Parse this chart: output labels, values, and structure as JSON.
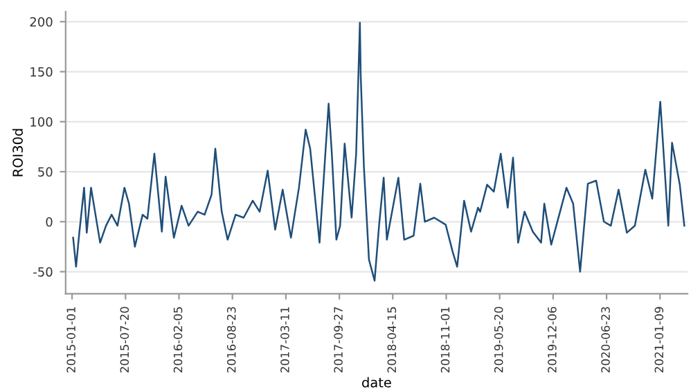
{
  "chart_data": {
    "type": "line",
    "xlabel": "date",
    "ylabel": "ROI30d",
    "x": [
      "2015-01-05",
      "2015-01-16",
      "2015-01-27",
      "2015-02-15",
      "2015-02-25",
      "2015-03-13",
      "2015-04-16",
      "2015-05-08",
      "2015-05-29",
      "2015-06-20",
      "2015-07-16",
      "2015-08-02",
      "2015-08-24",
      "2015-09-22",
      "2015-10-10",
      "2015-11-05",
      "2015-12-03",
      "2015-12-17",
      "2016-01-17",
      "2016-02-15",
      "2016-03-12",
      "2016-04-15",
      "2016-05-11",
      "2016-06-06",
      "2016-06-20",
      "2016-07-14",
      "2016-08-05",
      "2016-09-04",
      "2016-10-04",
      "2016-11-07",
      "2016-12-03",
      "2017-01-02",
      "2017-01-30",
      "2017-02-27",
      "2017-03-30",
      "2017-04-29",
      "2017-05-24",
      "2017-06-10",
      "2017-07-15",
      "2017-08-18",
      "2017-08-30",
      "2017-09-16",
      "2017-09-30",
      "2017-10-17",
      "2017-11-12",
      "2017-11-29",
      "2017-12-13",
      "2017-12-16",
      "2017-12-28",
      "2018-01-16",
      "2018-02-06",
      "2018-02-23",
      "2018-03-12",
      "2018-03-24",
      "2018-05-06",
      "2018-05-28",
      "2018-07-02",
      "2018-07-27",
      "2018-08-13",
      "2018-09-17",
      "2018-10-30",
      "2018-11-25",
      "2018-12-12",
      "2019-01-07",
      "2019-02-02",
      "2019-02-28",
      "2019-03-08",
      "2019-04-03",
      "2019-04-28",
      "2019-05-24",
      "2019-06-19",
      "2019-07-09",
      "2019-07-28",
      "2019-08-21",
      "2019-09-21",
      "2019-10-22",
      "2019-11-03",
      "2019-11-29",
      "2019-12-25",
      "2020-01-25",
      "2020-02-19",
      "2020-03-16",
      "2020-04-14",
      "2020-05-15",
      "2020-06-13",
      "2020-07-09",
      "2020-08-07",
      "2020-09-07",
      "2020-10-07",
      "2020-11-15",
      "2020-12-11",
      "2021-01-10",
      "2021-02-09",
      "2021-02-23",
      "2021-03-24",
      "2021-04-10"
    ],
    "series": [
      {
        "color": "#1f4e79",
        "values": [
          -16,
          -45,
          -14,
          34,
          -11,
          34,
          -21,
          -4,
          7,
          -4,
          34,
          18,
          -25,
          7,
          3,
          68,
          -10,
          45,
          -16,
          16,
          -4,
          10,
          7,
          27,
          73,
          10,
          -18,
          7,
          4,
          21,
          10,
          51,
          -8,
          32,
          -16,
          34,
          92,
          73,
          -21,
          118,
          68,
          -18,
          -4,
          78,
          4,
          68,
          199,
          147,
          55,
          -38,
          -59,
          -3,
          44,
          -18,
          44,
          -18,
          -14,
          38,
          0,
          4,
          -3,
          -30,
          -45,
          21,
          -10,
          14,
          10,
          37,
          30,
          68,
          14,
          64,
          -21,
          10,
          -10,
          -21,
          18,
          -23,
          3,
          34,
          18,
          -50,
          38,
          41,
          0,
          -4,
          32,
          -11,
          -4,
          52,
          23,
          120,
          -4,
          79,
          37,
          -4
        ]
      }
    ],
    "xlim": [
      "2014-12-08",
      "2021-04-22"
    ],
    "xticks": [
      "2015-01-01",
      "2015-07-20",
      "2016-02-05",
      "2016-08-23",
      "2017-03-11",
      "2017-09-27",
      "2018-04-15",
      "2018-11-01",
      "2019-05-20",
      "2019-12-06",
      "2020-06-23",
      "2021-01-09"
    ],
    "ylim": [
      -72,
      210
    ],
    "yticks": [
      -50,
      0,
      50,
      100,
      150,
      200
    ],
    "grid": "y",
    "line_style": "solid"
  }
}
